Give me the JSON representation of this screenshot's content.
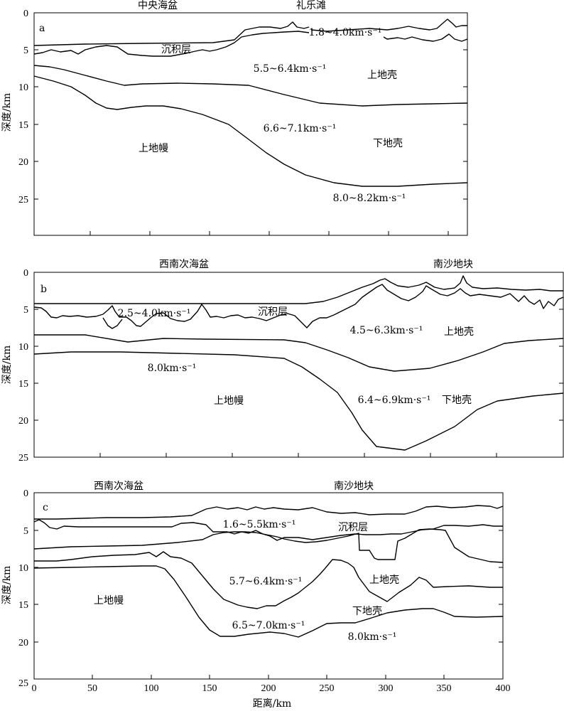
{
  "x_axis": {
    "label": "距离/km",
    "ticks": [
      "0",
      "50",
      "100",
      "150",
      "200",
      "250",
      "300",
      "350",
      "400"
    ]
  },
  "panels": [
    {
      "letter": "a",
      "ylabel": "深度/km",
      "yticks": [
        "0",
        "5",
        "10",
        "15",
        "20",
        "25"
      ],
      "top_labels": [
        "中央海盆",
        "礼乐滩"
      ],
      "layer_labels": [
        "沉积层",
        "上地壳",
        "下地壳",
        "上地幔"
      ],
      "velocity_labels": [
        "1.8~4.0km·s⁻¹",
        "5.5~6.4km·s⁻¹",
        "6.6~7.1km·s⁻¹",
        "8.0~8.2km·s⁻¹"
      ]
    },
    {
      "letter": "b",
      "ylabel": "深度/km",
      "yticks": [
        "0",
        "5",
        "10",
        "15",
        "20",
        "25"
      ],
      "top_labels": [
        "西南次海盆",
        "南沙地块"
      ],
      "layer_labels": [
        "沉积层",
        "上地壳",
        "下地壳",
        "上地幔"
      ],
      "velocity_labels": [
        "2.5~4.0km·s⁻¹",
        "4.5~6.3km·s⁻¹",
        "6.4~6.9km·s⁻¹",
        "8.0km·s⁻¹"
      ]
    },
    {
      "letter": "c",
      "ylabel": "深度/km",
      "yticks": [
        "0",
        "5",
        "10",
        "15",
        "20",
        "25"
      ],
      "top_labels": [
        "西南次海盆",
        "南沙地块"
      ],
      "layer_labels": [
        "沉积层",
        "上地壳",
        "下地壳",
        "上地幔"
      ],
      "velocity_labels": [
        "1.6~5.5km·s⁻¹",
        "5.7~6.4km·s⁻¹",
        "6.5~7.0km·s⁻¹",
        "8.0km·s⁻¹"
      ]
    }
  ]
}
